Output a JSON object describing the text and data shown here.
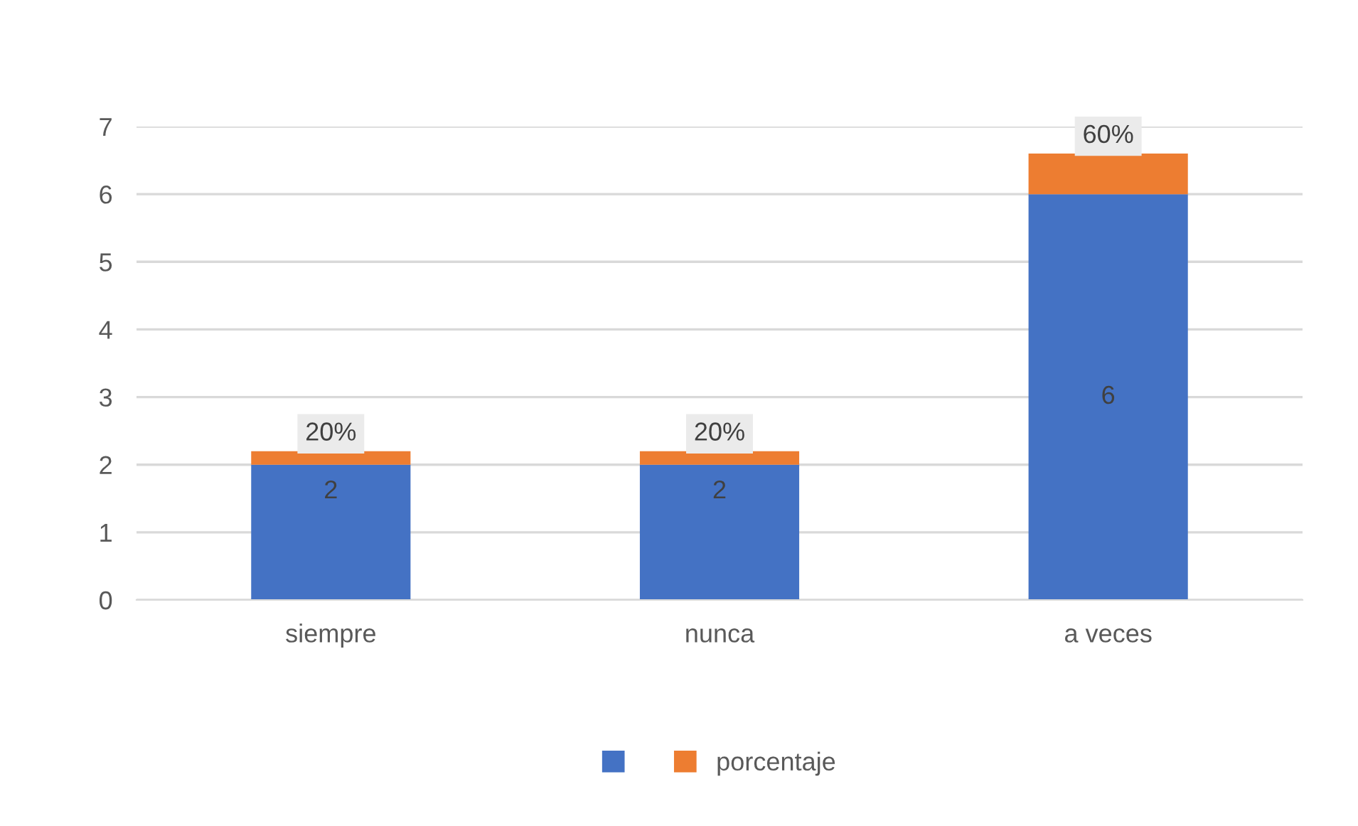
{
  "chart_data": {
    "type": "bar",
    "stacked": true,
    "categories": [
      "siempre",
      "nunca",
      "a veces"
    ],
    "series": [
      {
        "color": "#4472c4",
        "values": [
          2,
          2,
          6
        ],
        "value_labels": [
          "2",
          "2",
          "6"
        ]
      },
      {
        "name": "porcentaje",
        "color": "#ed7d31",
        "values": [
          0.2,
          0.2,
          0.6
        ],
        "value_labels": [
          "20%",
          "20%",
          "60%"
        ]
      }
    ],
    "ylim": [
      0,
      7
    ],
    "yticks": [
      0,
      1,
      2,
      3,
      4,
      5,
      6,
      7
    ],
    "grid": "y",
    "legend": "bottom"
  }
}
